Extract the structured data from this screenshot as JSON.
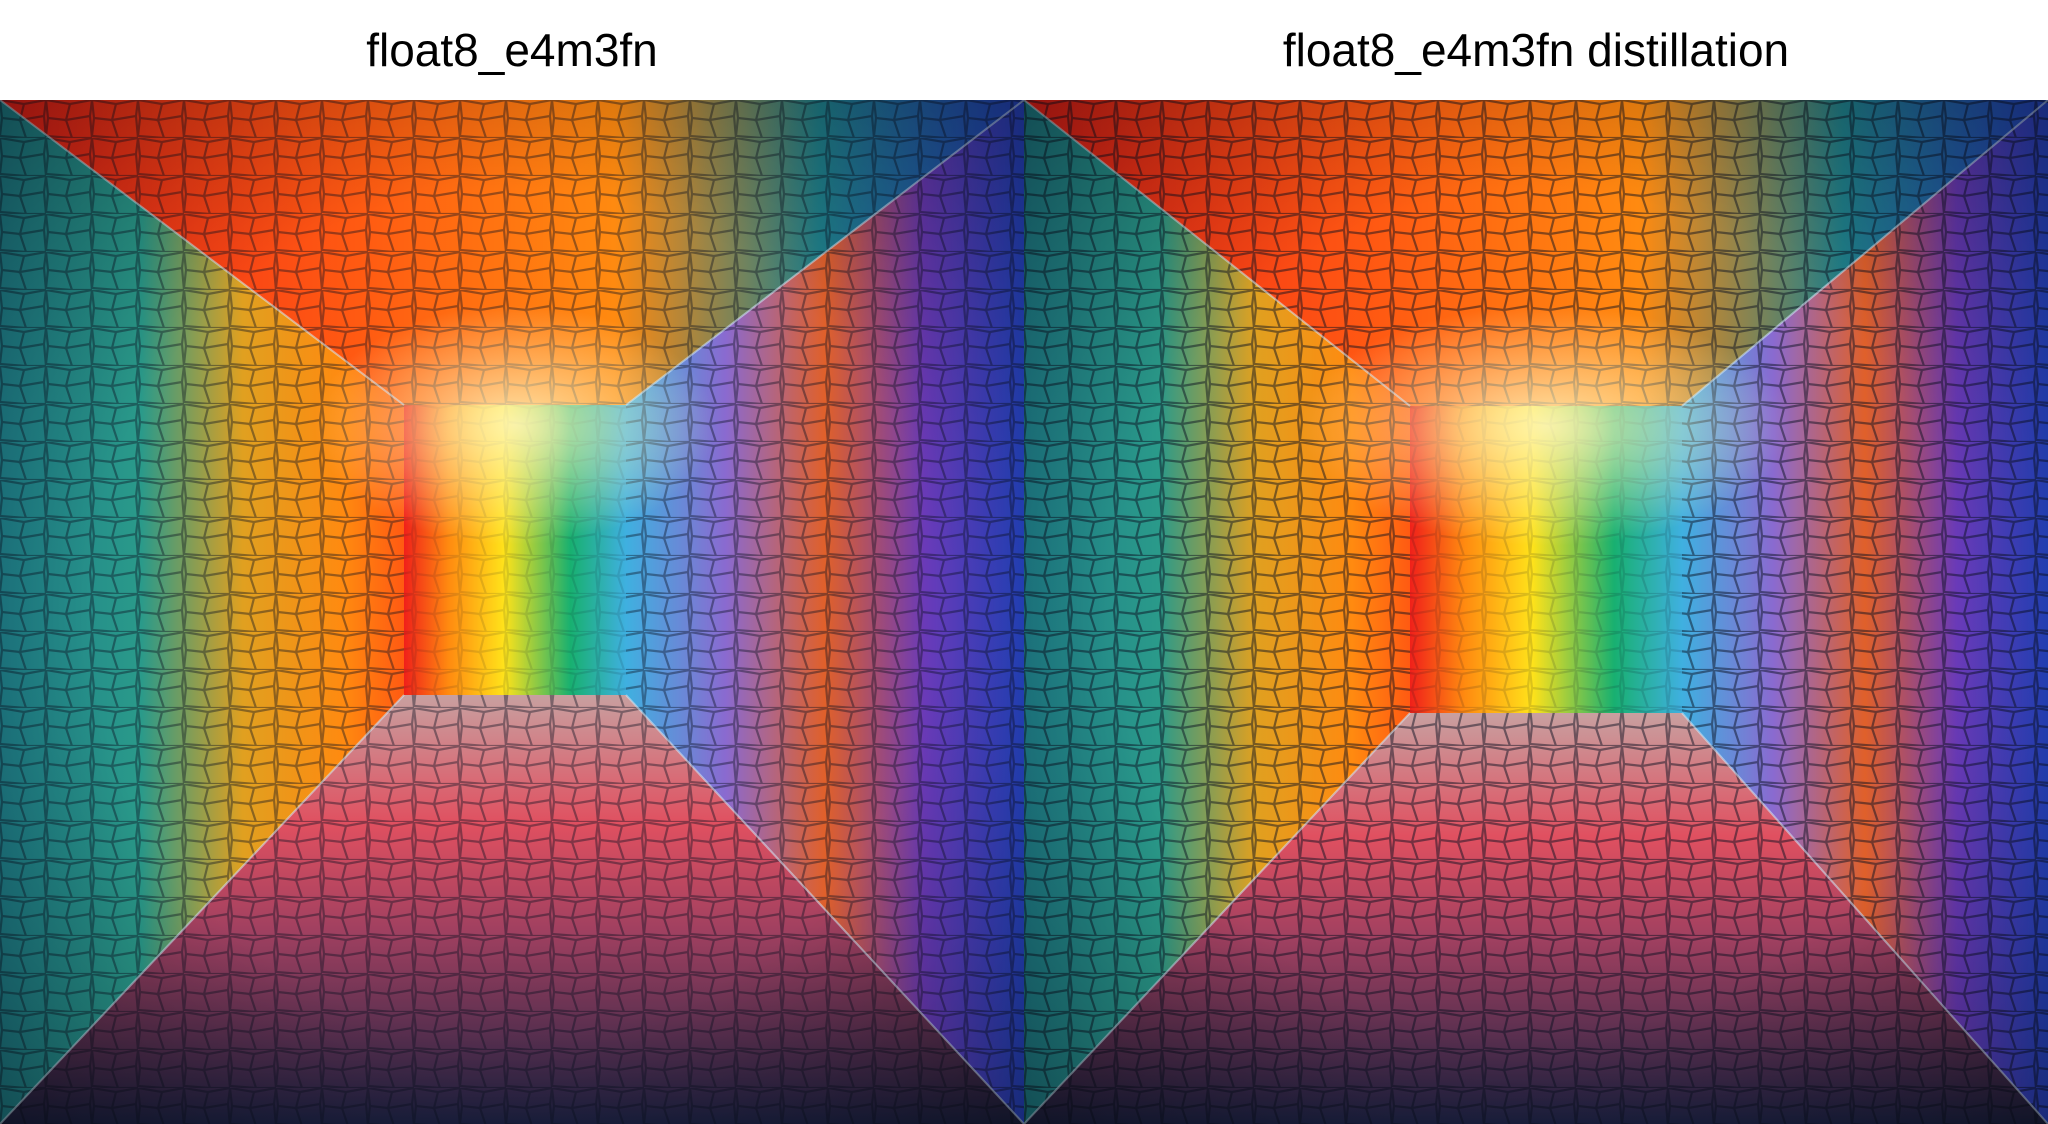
{
  "figure": {
    "panels": [
      {
        "title": "float8_e4m3fn",
        "image_name": "rainbow-mosaic-corridor-image"
      },
      {
        "title": "float8_e4m3fn distillation",
        "image_name": "rainbow-mosaic-corridor-image"
      }
    ],
    "colors": {
      "red": "#f0201a",
      "orange": "#ff8a10",
      "yellow": "#ffe21a",
      "green": "#18b070",
      "cyan": "#3fb0e0",
      "blue": "#2646c8",
      "violet": "#6a3ab8",
      "teal": "#1f7f8a",
      "dark": "#0d1430"
    }
  }
}
